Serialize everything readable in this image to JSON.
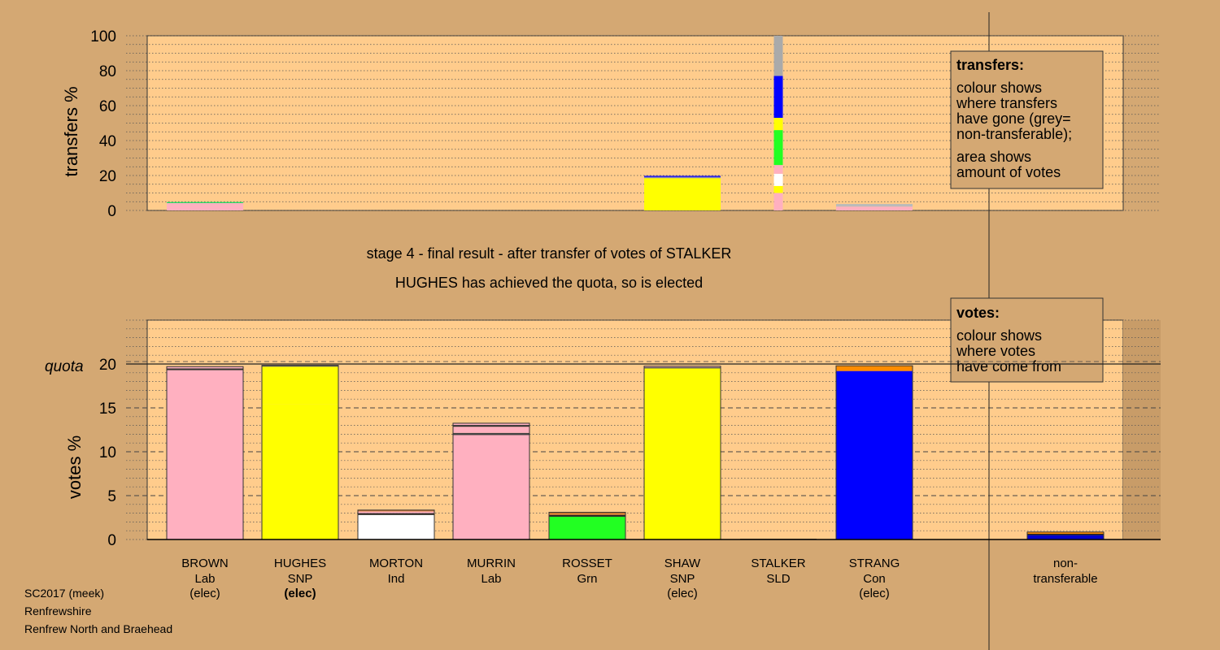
{
  "footer": {
    "source": "SC2017 (meek)",
    "council": "Renfrewshire",
    "ward": "Renfrew North and Braehead"
  },
  "chart_data": [
    {
      "type": "bar",
      "name": "transfers",
      "ylabel": "transfers %",
      "ylim": [
        0,
        100
      ],
      "yticks": [
        0,
        20,
        40,
        60,
        80,
        100
      ],
      "legend": {
        "title": "transfers:",
        "lines": [
          "colour shows",
          "where transfers",
          "have gone (grey=",
          "non-transferable);",
          "area shows",
          "amount of votes"
        ]
      },
      "transfer_column": {
        "candidate": "STALKER",
        "segments": [
          {
            "party": "Lab",
            "color": "#ffb0c0",
            "value": 10
          },
          {
            "party": "SNP",
            "color": "#ffff00",
            "value": 4
          },
          {
            "party": "Ind",
            "color": "#ffffff",
            "value": 7
          },
          {
            "party": "Lab",
            "color": "#ffb0c0",
            "value": 5
          },
          {
            "party": "Grn",
            "color": "#22ff22",
            "value": 20
          },
          {
            "party": "SNP",
            "color": "#ffff00",
            "value": 7
          },
          {
            "party": "Con",
            "color": "#0000ff",
            "value": 24
          },
          {
            "party": "non-transferable",
            "color": "#aaaaaa",
            "value": 23
          }
        ]
      },
      "received": [
        {
          "candidate": "BROWN",
          "segments": [
            {
              "color": "#ffb0c0",
              "value": 4.2
            },
            {
              "color": "#22dd66",
              "value": 0.6
            }
          ]
        },
        {
          "candidate": "SHAW",
          "segments": [
            {
              "color": "#ffff00",
              "value": 18.5
            },
            {
              "color": "#8888aa",
              "value": 0.7
            },
            {
              "color": "#0000ff",
              "value": 0.6
            }
          ]
        },
        {
          "candidate": "STRANG",
          "segments": [
            {
              "color": "#ffb0c0",
              "value": 2.2
            },
            {
              "color": "#bbbbbb",
              "value": 1.5
            }
          ]
        }
      ]
    },
    {
      "type": "bar",
      "name": "votes",
      "title": "stage 4 - final result - after transfer of votes of STALKER",
      "subtitle": "HUGHES has achieved the quota, so is elected",
      "ylabel": "votes %",
      "ylim": [
        0,
        25
      ],
      "yticks": [
        0,
        5,
        10,
        15,
        20
      ],
      "quota": 20,
      "quota_label": "quota",
      "legend": {
        "title": "votes:",
        "lines": [
          "colour shows",
          "where votes",
          "have come from"
        ]
      },
      "candidates": [
        {
          "name": "BROWN",
          "party": "Lab",
          "status": "(elec)",
          "bold": false,
          "segments": [
            {
              "color": "#ffb0c0",
              "value": 19.3
            },
            {
              "color": "#333333",
              "value": 0.2
            },
            {
              "color": "#ffb0c0",
              "value": 0.2
            }
          ]
        },
        {
          "name": "HUGHES",
          "party": "SNP",
          "status": "(elec)",
          "bold": true,
          "segments": [
            {
              "color": "#ffff00",
              "value": 15.4
            },
            {
              "color": "#ffff00",
              "value": 4.3
            },
            {
              "color": "#555555",
              "value": 0.15
            }
          ]
        },
        {
          "name": "MORTON",
          "party": "Ind",
          "status": "",
          "bold": false,
          "segments": [
            {
              "color": "#ffffff",
              "value": 2.8
            },
            {
              "color": "#222222",
              "value": 0.2
            },
            {
              "color": "#ffb0c0",
              "value": 0.2
            },
            {
              "color": "#d07a30",
              "value": 0.15
            }
          ]
        },
        {
          "name": "MURRIN",
          "party": "Lab",
          "status": "",
          "bold": false,
          "segments": [
            {
              "color": "#ffb0c0",
              "value": 11.9
            },
            {
              "color": "#444444",
              "value": 0.25
            },
            {
              "color": "#ffb0c0",
              "value": 0.7
            },
            {
              "color": "#333333",
              "value": 0.2
            },
            {
              "color": "#ffb0c0",
              "value": 0.2
            }
          ]
        },
        {
          "name": "ROSSET",
          "party": "Grn",
          "status": "",
          "bold": false,
          "segments": [
            {
              "color": "#22ff22",
              "value": 2.6
            },
            {
              "color": "#222222",
              "value": 0.2
            },
            {
              "color": "#d07a30",
              "value": 0.3
            }
          ]
        },
        {
          "name": "SHAW",
          "party": "SNP",
          "status": "(elec)",
          "bold": false,
          "segments": [
            {
              "color": "#ffff00",
              "value": 19.5
            },
            {
              "color": "#555555",
              "value": 0.15
            },
            {
              "color": "#ffb0c0",
              "value": 0.1
            }
          ]
        },
        {
          "name": "STALKER",
          "party": "SLD",
          "status": "",
          "bold": false,
          "segments": [
            {
              "color": "#333333",
              "value": 0.08
            }
          ]
        },
        {
          "name": "STRANG",
          "party": "Con",
          "status": "(elec)",
          "bold": false,
          "segments": [
            {
              "color": "#0000ff",
              "value": 19.2
            },
            {
              "color": "#ff8c00",
              "value": 0.6
            }
          ]
        }
      ],
      "nontransferable": {
        "label1": "non-",
        "label2": "transferable",
        "segments": [
          {
            "color": "#0000cc",
            "value": 0.5
          },
          {
            "color": "#222222",
            "value": 0.15
          },
          {
            "color": "#ff8c00",
            "value": 0.2
          }
        ]
      }
    }
  ]
}
